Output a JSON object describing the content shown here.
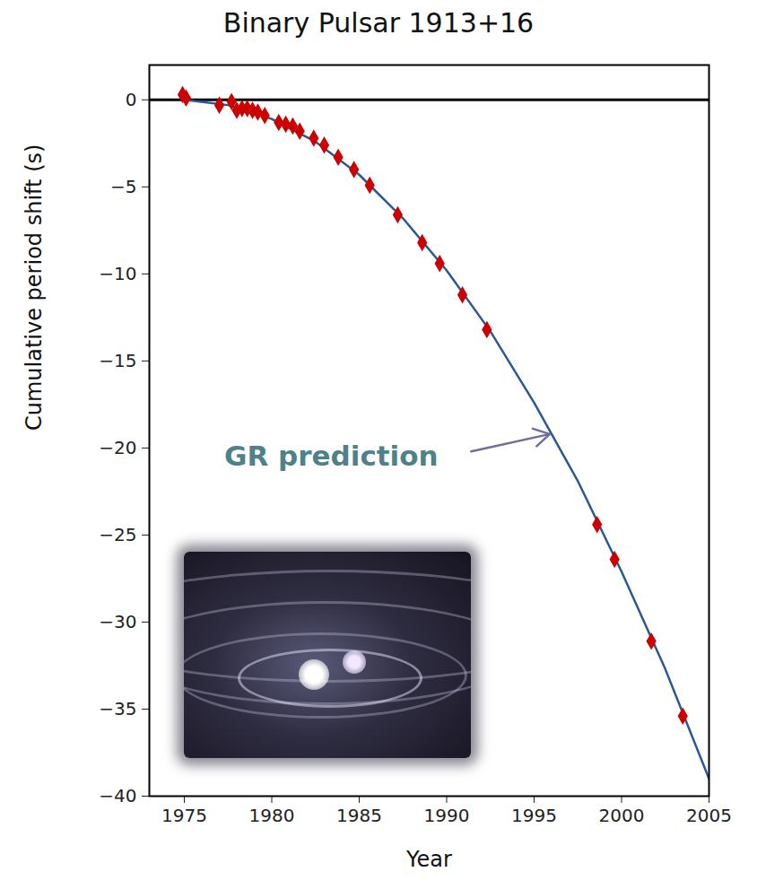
{
  "chart_data": {
    "type": "line",
    "title": "Binary Pulsar 1913+16",
    "x_label": "Year",
    "y_label": "Cumulative period shift (s)",
    "xlim": [
      1973,
      2005
    ],
    "ylim": [
      -40,
      2
    ],
    "xticks": [
      1975,
      1980,
      1985,
      1990,
      1995,
      2000,
      2005
    ],
    "yticks": [
      0,
      -5,
      -10,
      -15,
      -20,
      -25,
      -30,
      -35,
      -40
    ],
    "grid": false,
    "annotation": "GR prediction",
    "series": [
      {
        "type": "line",
        "color": "#2b5797",
        "line_style": "solid",
        "x": [
          1975,
          1977.5,
          1980,
          1982.5,
          1985,
          1987.5,
          1990,
          1992.5,
          1995,
          1997.5,
          2000,
          2002.5,
          2005
        ],
        "values": [
          0,
          -0.3,
          -1.1,
          -2.4,
          -4.3,
          -6.8,
          -9.8,
          -13.3,
          -17.4,
          -21.9,
          -27.1,
          -32.7,
          -39.0
        ]
      },
      {
        "type": "scatter",
        "color": "#cc0000",
        "marker": "diamond",
        "x": [
          1974.9,
          1975.1,
          1977.0,
          1977.7,
          1978.0,
          1978.3,
          1978.6,
          1978.9,
          1979.2,
          1979.6,
          1980.4,
          1980.8,
          1981.2,
          1981.6,
          1982.4,
          1983.0,
          1983.8,
          1984.7,
          1985.6,
          1987.2,
          1988.6,
          1989.6,
          1990.9,
          1992.3,
          1998.6,
          1999.6,
          2001.7,
          2003.5
        ],
        "values": [
          0.3,
          0.1,
          -0.3,
          -0.1,
          -0.6,
          -0.5,
          -0.5,
          -0.6,
          -0.7,
          -0.9,
          -1.3,
          -1.4,
          -1.5,
          -1.8,
          -2.2,
          -2.6,
          -3.3,
          -4.0,
          -4.9,
          -6.6,
          -8.2,
          -9.4,
          -11.2,
          -13.2,
          -24.4,
          -26.4,
          -31.1,
          -35.4
        ]
      }
    ]
  }
}
